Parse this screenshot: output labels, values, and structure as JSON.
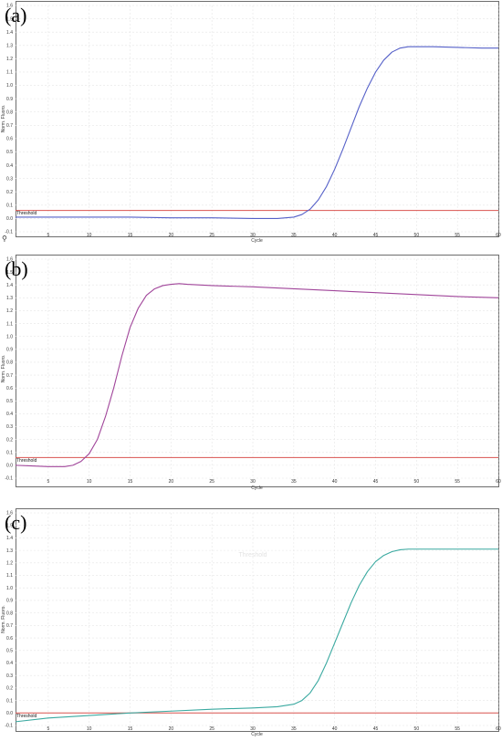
{
  "panels": [
    {
      "letter": "(a)",
      "ylabel": "Norm. Fluoro.",
      "xlabel": "Cycle",
      "threshold_label": "Threshold",
      "watermark": ""
    },
    {
      "letter": "(b)",
      "ylabel": "Norm. Fluoro.",
      "xlabel": "Cycle",
      "threshold_label": "Threshold",
      "watermark": ""
    },
    {
      "letter": "(c)",
      "ylabel": "Norm. Fluoro.",
      "xlabel": "Cycle",
      "threshold_label": "Threshold",
      "watermark": "Threshold"
    }
  ],
  "chart_data": [
    {
      "type": "line",
      "title": "(a)",
      "xlabel": "Cycle",
      "ylabel": "Norm. Fluoro.",
      "xlim": [
        1,
        60
      ],
      "ylim": [
        -0.1,
        1.6
      ],
      "x_ticks": [
        5,
        10,
        15,
        20,
        25,
        30,
        35,
        40,
        45,
        50,
        55,
        60
      ],
      "y_ticks": [
        -0.1,
        0.0,
        0.1,
        0.2,
        0.3,
        0.4,
        0.5,
        0.6,
        0.7,
        0.8,
        0.9,
        1.0,
        1.1,
        1.2,
        1.3,
        1.4,
        1.5,
        1.6
      ],
      "threshold": 0.06,
      "threshold_color": "#d9534f",
      "series": [
        {
          "color": "#5560c8",
          "x": [
            1,
            5,
            10,
            15,
            20,
            25,
            30,
            33,
            35,
            36,
            37,
            38,
            39,
            40,
            41,
            42,
            43,
            44,
            45,
            46,
            47,
            48,
            49,
            50,
            52,
            55,
            58,
            60
          ],
          "y": [
            0.01,
            0.01,
            0.01,
            0.01,
            0.005,
            0.005,
            0.0,
            0.0,
            0.01,
            0.03,
            0.07,
            0.14,
            0.24,
            0.37,
            0.52,
            0.68,
            0.84,
            0.98,
            1.1,
            1.19,
            1.25,
            1.28,
            1.29,
            1.29,
            1.29,
            1.285,
            1.28,
            1.28
          ]
        }
      ]
    },
    {
      "type": "line",
      "title": "(b)",
      "xlabel": "Cycle",
      "ylabel": "Norm. Fluoro.",
      "xlim": [
        1,
        60
      ],
      "ylim": [
        -0.1,
        1.6
      ],
      "x_ticks": [
        5,
        10,
        15,
        20,
        25,
        30,
        35,
        40,
        45,
        50,
        55,
        60
      ],
      "y_ticks": [
        -0.1,
        0.0,
        0.1,
        0.2,
        0.3,
        0.4,
        0.5,
        0.6,
        0.7,
        0.8,
        0.9,
        1.0,
        1.1,
        1.2,
        1.3,
        1.4,
        1.5,
        1.6
      ],
      "threshold": 0.06,
      "threshold_color": "#d9534f",
      "series": [
        {
          "color": "#a0459a",
          "x": [
            1,
            3,
            5,
            7,
            8,
            9,
            10,
            11,
            12,
            13,
            14,
            15,
            16,
            17,
            18,
            19,
            20,
            21,
            22,
            25,
            30,
            35,
            40,
            45,
            50,
            55,
            60
          ],
          "y": [
            0.0,
            -0.005,
            -0.01,
            -0.01,
            0.0,
            0.03,
            0.09,
            0.2,
            0.38,
            0.6,
            0.85,
            1.07,
            1.22,
            1.32,
            1.37,
            1.395,
            1.405,
            1.41,
            1.405,
            1.395,
            1.385,
            1.37,
            1.355,
            1.34,
            1.325,
            1.31,
            1.3
          ]
        }
      ]
    },
    {
      "type": "line",
      "title": "(c)",
      "xlabel": "Cycle",
      "ylabel": "Norm. Fluoro.",
      "xlim": [
        1,
        60
      ],
      "ylim": [
        -0.1,
        1.6
      ],
      "x_ticks": [
        5,
        10,
        15,
        20,
        25,
        30,
        35,
        40,
        45,
        50,
        55,
        60
      ],
      "y_ticks": [
        -0.1,
        0.0,
        0.1,
        0.2,
        0.3,
        0.4,
        0.5,
        0.6,
        0.7,
        0.8,
        0.9,
        1.0,
        1.1,
        1.2,
        1.3,
        1.4,
        1.5,
        1.6
      ],
      "threshold": 0.0,
      "threshold_color": "#d9534f",
      "series": [
        {
          "color": "#3aa9a0",
          "x": [
            1,
            5,
            10,
            15,
            20,
            25,
            30,
            33,
            35,
            36,
            37,
            38,
            39,
            40,
            41,
            42,
            43,
            44,
            45,
            46,
            47,
            48,
            49,
            50,
            52,
            55,
            60
          ],
          "y": [
            -0.07,
            -0.04,
            -0.02,
            0.0,
            0.015,
            0.03,
            0.04,
            0.05,
            0.07,
            0.1,
            0.16,
            0.26,
            0.4,
            0.56,
            0.72,
            0.88,
            1.02,
            1.13,
            1.21,
            1.26,
            1.29,
            1.305,
            1.31,
            1.31,
            1.31,
            1.31,
            1.31
          ]
        }
      ]
    }
  ]
}
